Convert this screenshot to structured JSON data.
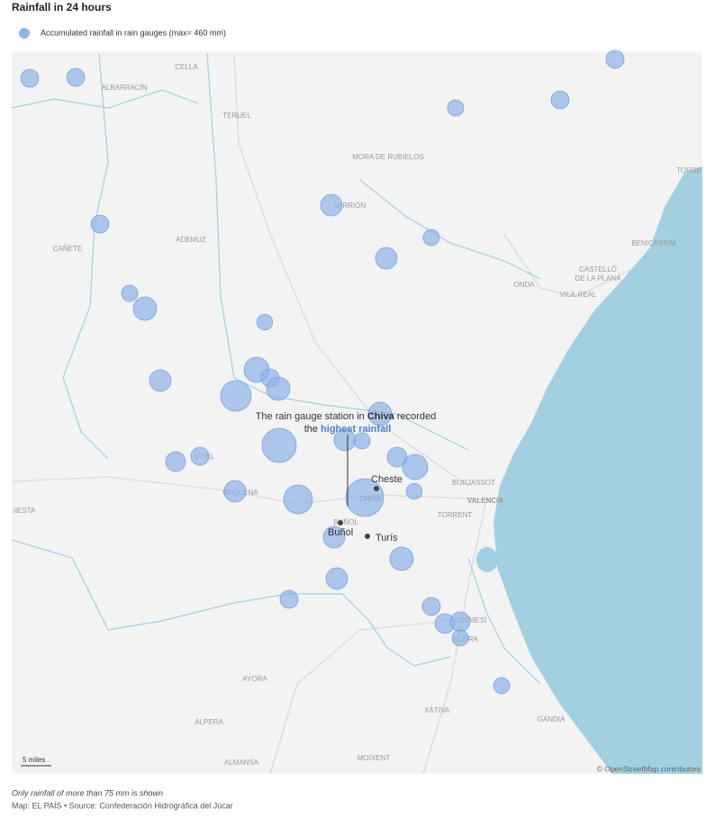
{
  "header": {
    "title": "Rainfall in 24 hours",
    "legend": "Accumulated rainfall in rain gauges (max= 460 mm)"
  },
  "places": [
    "CELLA",
    "ALBARRACÍN",
    "TERUEL",
    "MORA DE RUBIELOS",
    "TORRE",
    "SARRIÓN",
    "CAÑETE",
    "ADEMUZ",
    "BENICASSIM",
    "CASTELLÓ",
    "DE LA PLANA",
    "ONDA",
    "VILA-REAL",
    "UTIEL",
    "REQUENA",
    "IIESTA",
    "CHIVA",
    "BURJASSOT",
    "VALENCIA",
    "TORRENT",
    "BUÑOL",
    "ALGEMESÍ",
    "ALZIRA",
    "AYORA",
    "ALPERA",
    "XÀTIVA",
    "GANDIA",
    "ALMANSA",
    "MOIXENT"
  ],
  "towns": [
    "Cheste",
    "Buñol",
    "Turís"
  ],
  "annotation": {
    "before": "The rain gauge station in ",
    "station": "Chiva",
    "after": " recorded",
    "line2": "the ",
    "highlight": "highest rainfall"
  },
  "gauges": {
    "unit": "mm",
    "values": [
      104,
      104,
      104,
      84,
      104,
      104,
      150,
      84,
      150,
      84,
      176,
      80,
      150,
      204,
      104,
      176,
      301,
      176,
      377,
      150,
      84,
      126,
      204,
      126,
      104,
      150,
      267,
      460,
      80,
      150,
      176,
      150,
      104,
      104,
      126,
      126,
      84,
      84
    ]
  },
  "scale": "5 miles",
  "credit": "© OpenStreetMap contributors",
  "footer": {
    "note": "Only rainfall of more than 75 mm is shown",
    "source": "Map: EL PAÍS • Source: Confederación Hidrográfica del Júcar"
  }
}
